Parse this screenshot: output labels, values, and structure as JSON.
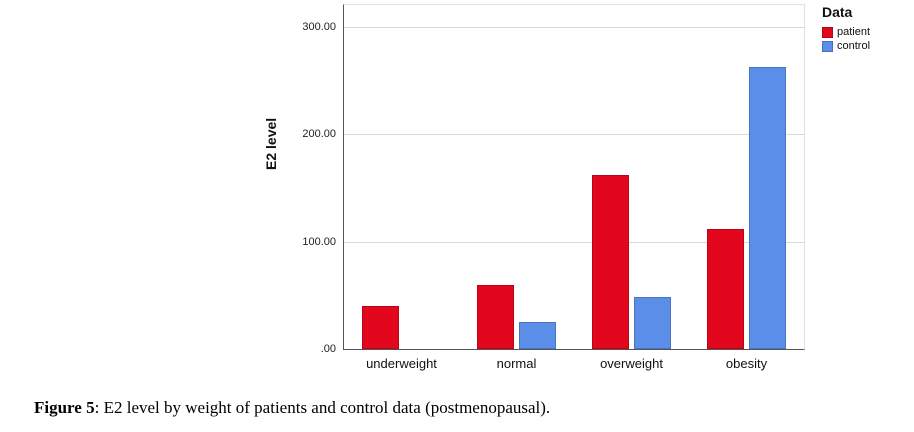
{
  "figure": {
    "caption_bold": "Figure 5",
    "caption_rest": ": E2 level by weight of patients and control data (postmenopausal)."
  },
  "chart_data": {
    "type": "bar",
    "title": "",
    "xlabel": "",
    "ylabel": "E2 level",
    "categories": [
      "underweight",
      "normal",
      "overweight",
      "obesity"
    ],
    "series": [
      {
        "name": "patient",
        "color": "#e2071c",
        "values": [
          40,
          60,
          162,
          112
        ]
      },
      {
        "name": "control",
        "color": "#5b8ee8",
        "values": [
          0,
          25,
          48,
          262
        ]
      }
    ],
    "ylim": [
      0,
      320
    ],
    "yticks": [
      {
        "value": 0,
        "label": ".00"
      },
      {
        "value": 100,
        "label": "100.00"
      },
      {
        "value": 200,
        "label": "200.00"
      },
      {
        "value": 300,
        "label": "300.00"
      }
    ],
    "grid": true,
    "legend_title": "Data",
    "legend_position": "top-right"
  }
}
